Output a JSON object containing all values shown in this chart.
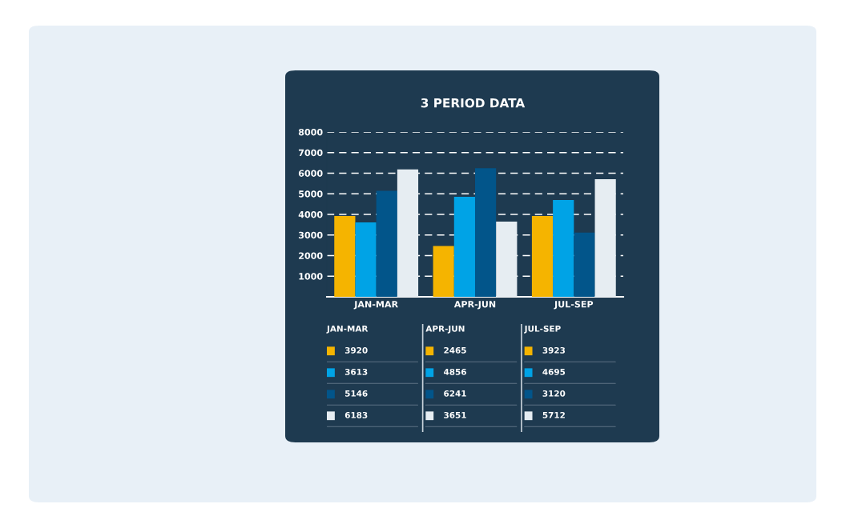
{
  "chart_data": {
    "type": "bar",
    "title": "3 PERIOD DATA",
    "categories": [
      "JAN-MAR",
      "APR-JUN",
      "JUL-SEP"
    ],
    "series": [
      {
        "color": "#f5b400",
        "values": [
          3920,
          2465,
          3923
        ]
      },
      {
        "color": "#00a3e6",
        "values": [
          3613,
          4856,
          4695
        ]
      },
      {
        "color": "#02558a",
        "values": [
          5146,
          6241,
          3120
        ]
      },
      {
        "color": "#e6edf2",
        "values": [
          6183,
          3651,
          5712
        ]
      }
    ],
    "ylim": [
      0,
      8000
    ],
    "yticks": [
      {
        "value": 0,
        "label": null
      },
      1000,
      2000,
      3000,
      4000,
      5000,
      6000,
      7000,
      8000
    ],
    "grid": "y",
    "data_labels": true
  }
}
